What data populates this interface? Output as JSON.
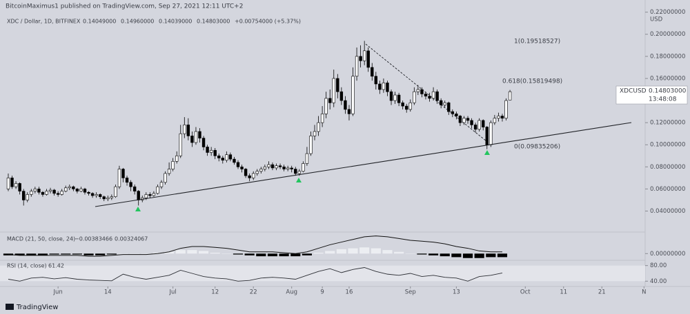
{
  "header": {
    "publisher": "BitcoinMaximus1 published on TradingView.com, Sep 27, 2021 12:11 UTC+2",
    "symbol_line": "XDC / Dollar, 1D, BITFINEX",
    "ohlc": [
      "0.14049000",
      "0.14960000",
      "0.14039000",
      "0.14803000",
      "+0.00754000 (+5.37%)"
    ],
    "footer": "TradingView"
  },
  "chart_data": [
    {
      "type": "candlestick",
      "symbol": "XDCUSD",
      "currency": "USD",
      "last_price": "0.14803000",
      "countdown": "13:48:08",
      "fib_labels": [
        "1(0.19518527)",
        "0.618(0.15819498)",
        "0(0.09835206)"
      ],
      "up_color": "#ffffff",
      "down_color": "#000000",
      "grid": false,
      "xlim": [
        -2.16,
        166.3
      ],
      "xticks": [
        {
          "value": 13,
          "label": "Jun"
        },
        {
          "value": 26,
          "label": "14"
        },
        {
          "value": 43,
          "label": "Jul"
        },
        {
          "value": 54,
          "label": "12"
        },
        {
          "value": 64,
          "label": "22"
        },
        {
          "value": 74,
          "label": "Aug"
        },
        {
          "value": 82,
          "label": "9"
        },
        {
          "value": 89,
          "label": "16"
        },
        {
          "value": 105,
          "label": "Sep"
        },
        {
          "value": 117,
          "label": "13"
        },
        {
          "value": 135,
          "label": "Oct"
        },
        {
          "value": 145,
          "label": "11"
        },
        {
          "value": 155,
          "label": "21"
        },
        {
          "value": 166,
          "label": "N"
        }
      ],
      "ylim": [
        0.021,
        0.231
      ],
      "yticks": [
        {
          "value": 0.04,
          "label": "0.04000000"
        },
        {
          "value": 0.06,
          "label": "0.06000000"
        },
        {
          "value": 0.08,
          "label": "0.08000000"
        },
        {
          "value": 0.1,
          "label": "0.10000000"
        },
        {
          "value": 0.12,
          "label": "0.12000000"
        },
        {
          "value": 0.14,
          "label": "0.14000000"
        },
        {
          "value": 0.16,
          "label": "0.16000000"
        },
        {
          "value": 0.18,
          "label": "0.18000000"
        },
        {
          "value": 0.2,
          "label": "0.20000000"
        },
        {
          "value": 0.22,
          "label": "0.22000000"
        }
      ],
      "open": [
        0.06,
        0.07,
        0.062,
        0.065,
        0.058,
        0.05,
        0.055,
        0.058,
        0.06,
        0.057,
        0.055,
        0.058,
        0.059,
        0.056,
        0.055,
        0.058,
        0.061,
        0.062,
        0.06,
        0.058,
        0.06,
        0.057,
        0.056,
        0.054,
        0.055,
        0.053,
        0.051,
        0.052,
        0.053,
        0.062,
        0.078,
        0.07,
        0.066,
        0.062,
        0.058,
        0.05,
        0.052,
        0.055,
        0.054,
        0.056,
        0.062,
        0.066,
        0.074,
        0.078,
        0.085,
        0.09,
        0.11,
        0.118,
        0.108,
        0.102,
        0.112,
        0.106,
        0.098,
        0.093,
        0.095,
        0.09,
        0.088,
        0.086,
        0.091,
        0.087,
        0.084,
        0.08,
        0.078,
        0.072,
        0.07,
        0.074,
        0.076,
        0.078,
        0.08,
        0.082,
        0.079,
        0.081,
        0.08,
        0.078,
        0.079,
        0.078,
        0.074,
        0.076,
        0.083,
        0.092,
        0.108,
        0.112,
        0.12,
        0.128,
        0.142,
        0.138,
        0.16,
        0.148,
        0.14,
        0.132,
        0.128,
        0.162,
        0.18,
        0.176,
        0.185,
        0.17,
        0.162,
        0.155,
        0.15,
        0.156,
        0.148,
        0.14,
        0.145,
        0.138,
        0.135,
        0.132,
        0.138,
        0.148,
        0.15,
        0.146,
        0.144,
        0.142,
        0.148,
        0.14,
        0.136,
        0.138,
        0.13,
        0.128,
        0.126,
        0.12,
        0.124,
        0.122,
        0.118,
        0.114,
        0.122,
        0.116,
        0.1,
        0.12,
        0.124,
        0.126,
        0.124,
        0.14049
      ],
      "high": [
        0.074,
        0.072,
        0.067,
        0.066,
        0.06,
        0.057,
        0.06,
        0.062,
        0.062,
        0.058,
        0.06,
        0.061,
        0.06,
        0.058,
        0.06,
        0.063,
        0.064,
        0.063,
        0.061,
        0.062,
        0.061,
        0.058,
        0.057,
        0.057,
        0.056,
        0.054,
        0.054,
        0.055,
        0.064,
        0.081,
        0.079,
        0.072,
        0.068,
        0.064,
        0.059,
        0.054,
        0.057,
        0.057,
        0.058,
        0.064,
        0.068,
        0.076,
        0.084,
        0.088,
        0.094,
        0.118,
        0.125,
        0.124,
        0.112,
        0.116,
        0.115,
        0.108,
        0.1,
        0.098,
        0.097,
        0.092,
        0.09,
        0.094,
        0.093,
        0.089,
        0.086,
        0.082,
        0.079,
        0.074,
        0.076,
        0.078,
        0.08,
        0.082,
        0.085,
        0.084,
        0.083,
        0.083,
        0.082,
        0.081,
        0.081,
        0.08,
        0.078,
        0.085,
        0.098,
        0.112,
        0.118,
        0.126,
        0.135,
        0.148,
        0.15,
        0.168,
        0.164,
        0.152,
        0.144,
        0.136,
        0.17,
        0.188,
        0.19,
        0.194,
        0.188,
        0.174,
        0.166,
        0.158,
        0.16,
        0.158,
        0.15,
        0.148,
        0.147,
        0.14,
        0.137,
        0.141,
        0.152,
        0.154,
        0.152,
        0.148,
        0.147,
        0.152,
        0.15,
        0.142,
        0.14,
        0.139,
        0.132,
        0.13,
        0.127,
        0.126,
        0.126,
        0.124,
        0.12,
        0.124,
        0.123,
        0.117,
        0.122,
        0.127,
        0.129,
        0.128,
        0.142,
        0.1496
      ],
      "low": [
        0.058,
        0.06,
        0.06,
        0.055,
        0.045,
        0.048,
        0.053,
        0.056,
        0.055,
        0.053,
        0.054,
        0.056,
        0.054,
        0.053,
        0.054,
        0.057,
        0.059,
        0.058,
        0.056,
        0.057,
        0.055,
        0.054,
        0.052,
        0.052,
        0.051,
        0.049,
        0.049,
        0.05,
        0.052,
        0.06,
        0.066,
        0.063,
        0.058,
        0.055,
        0.045,
        0.048,
        0.05,
        0.052,
        0.053,
        0.055,
        0.06,
        0.064,
        0.072,
        0.076,
        0.083,
        0.088,
        0.106,
        0.104,
        0.098,
        0.1,
        0.102,
        0.095,
        0.09,
        0.09,
        0.087,
        0.085,
        0.083,
        0.084,
        0.085,
        0.082,
        0.078,
        0.075,
        0.07,
        0.067,
        0.068,
        0.072,
        0.074,
        0.076,
        0.078,
        0.077,
        0.077,
        0.078,
        0.076,
        0.076,
        0.075,
        0.072,
        0.072,
        0.075,
        0.081,
        0.09,
        0.104,
        0.108,
        0.116,
        0.124,
        0.132,
        0.134,
        0.142,
        0.136,
        0.128,
        0.122,
        0.126,
        0.158,
        0.17,
        0.172,
        0.166,
        0.158,
        0.15,
        0.146,
        0.147,
        0.144,
        0.136,
        0.137,
        0.135,
        0.132,
        0.129,
        0.13,
        0.136,
        0.145,
        0.143,
        0.141,
        0.139,
        0.14,
        0.137,
        0.133,
        0.134,
        0.127,
        0.125,
        0.123,
        0.117,
        0.118,
        0.119,
        0.115,
        0.111,
        0.112,
        0.113,
        0.096,
        0.098,
        0.118,
        0.121,
        0.121,
        0.122,
        0.14039
      ],
      "close": [
        0.07,
        0.062,
        0.065,
        0.058,
        0.05,
        0.055,
        0.058,
        0.06,
        0.057,
        0.055,
        0.058,
        0.059,
        0.056,
        0.055,
        0.058,
        0.061,
        0.062,
        0.06,
        0.058,
        0.06,
        0.057,
        0.056,
        0.054,
        0.055,
        0.053,
        0.051,
        0.052,
        0.053,
        0.062,
        0.078,
        0.07,
        0.066,
        0.062,
        0.058,
        0.05,
        0.052,
        0.055,
        0.054,
        0.056,
        0.062,
        0.066,
        0.074,
        0.078,
        0.085,
        0.09,
        0.11,
        0.118,
        0.108,
        0.102,
        0.112,
        0.106,
        0.098,
        0.093,
        0.095,
        0.09,
        0.088,
        0.086,
        0.091,
        0.087,
        0.084,
        0.08,
        0.078,
        0.072,
        0.07,
        0.074,
        0.076,
        0.078,
        0.08,
        0.082,
        0.079,
        0.081,
        0.08,
        0.078,
        0.079,
        0.078,
        0.074,
        0.076,
        0.083,
        0.092,
        0.108,
        0.112,
        0.12,
        0.128,
        0.142,
        0.138,
        0.16,
        0.148,
        0.14,
        0.132,
        0.128,
        0.162,
        0.18,
        0.176,
        0.185,
        0.17,
        0.162,
        0.155,
        0.15,
        0.156,
        0.148,
        0.14,
        0.145,
        0.138,
        0.135,
        0.132,
        0.138,
        0.148,
        0.15,
        0.146,
        0.144,
        0.142,
        0.148,
        0.14,
        0.136,
        0.138,
        0.13,
        0.128,
        0.126,
        0.12,
        0.124,
        0.122,
        0.118,
        0.114,
        0.122,
        0.116,
        0.1,
        0.12,
        0.124,
        0.126,
        0.124,
        0.14,
        0.14803
      ]
    },
    {
      "type": "macd",
      "title": "MACD (21, 50, close, 24)",
      "readings": [
        "−0.00383466",
        "0.00324067"
      ],
      "xlim": [
        -2.16,
        166.3
      ],
      "ylim": [
        -0.006,
        0.022
      ],
      "yticks": [
        {
          "value": 0,
          "label": "0.00000000"
        }
      ],
      "x": [
        0,
        3,
        6,
        9,
        12,
        15,
        18,
        21,
        24,
        27,
        30,
        33,
        36,
        39,
        42,
        45,
        48,
        51,
        54,
        57,
        60,
        63,
        66,
        69,
        72,
        75,
        78,
        81,
        84,
        87,
        90,
        93,
        96,
        99,
        102,
        105,
        108,
        111,
        114,
        117,
        120,
        123,
        126,
        129
      ],
      "histogram": {
        "color": "#eceef2",
        "negative_color": "#000000",
        "values": [
          -0.002,
          -0.002,
          -0.002,
          -0.002,
          -0.001,
          -0.001,
          -0.001,
          -0.002,
          -0.002,
          -0.001,
          0.0,
          0.0,
          0.0,
          0.001,
          0.002,
          0.004,
          0.004,
          0.003,
          0.001,
          0.0,
          -0.001,
          -0.002,
          -0.003,
          -0.003,
          -0.003,
          -0.003,
          -0.002,
          0.001,
          0.003,
          0.005,
          0.006,
          0.007,
          0.006,
          0.004,
          0.002,
          0.0,
          -0.001,
          -0.002,
          -0.003,
          -0.004,
          -0.005,
          -0.005,
          -0.004,
          -0.004
        ]
      },
      "line": {
        "color": "#111111",
        "values": [
          -0.001,
          -0.002,
          -0.002,
          -0.002,
          -0.002,
          -0.002,
          -0.002,
          -0.003,
          -0.003,
          -0.002,
          -0.001,
          -0.001,
          -0.001,
          0.0,
          0.002,
          0.006,
          0.008,
          0.008,
          0.007,
          0.006,
          0.004,
          0.002,
          0.002,
          0.002,
          0.001,
          0.0,
          0.002,
          0.006,
          0.01,
          0.013,
          0.016,
          0.019,
          0.02,
          0.019,
          0.017,
          0.015,
          0.014,
          0.013,
          0.011,
          0.008,
          0.006,
          0.003,
          0.002,
          0.002
        ]
      }
    },
    {
      "type": "rsi",
      "title": "RSI (14, close)",
      "reading": "61.42",
      "color": "#2b2d33",
      "band": [
        40,
        80
      ],
      "xlim": [
        -2.16,
        166.3
      ],
      "ylim": [
        30,
        90
      ],
      "yticks": [
        {
          "value": 80,
          "label": "80.00"
        },
        {
          "value": 40,
          "label": "40.00"
        }
      ],
      "x": [
        0,
        3,
        6,
        9,
        12,
        15,
        18,
        21,
        24,
        27,
        30,
        33,
        36,
        39,
        42,
        45,
        48,
        51,
        54,
        57,
        60,
        63,
        66,
        69,
        72,
        75,
        78,
        81,
        84,
        87,
        90,
        93,
        96,
        99,
        102,
        105,
        108,
        111,
        114,
        117,
        120,
        123,
        126,
        129
      ],
      "values": [
        45,
        40,
        48,
        50,
        46,
        49,
        45,
        43,
        42,
        41,
        58,
        50,
        45,
        50,
        55,
        68,
        60,
        52,
        48,
        46,
        40,
        42,
        48,
        50,
        48,
        45,
        55,
        65,
        72,
        62,
        70,
        75,
        65,
        58,
        55,
        60,
        52,
        55,
        50,
        48,
        40,
        52,
        55,
        61
      ]
    }
  ]
}
